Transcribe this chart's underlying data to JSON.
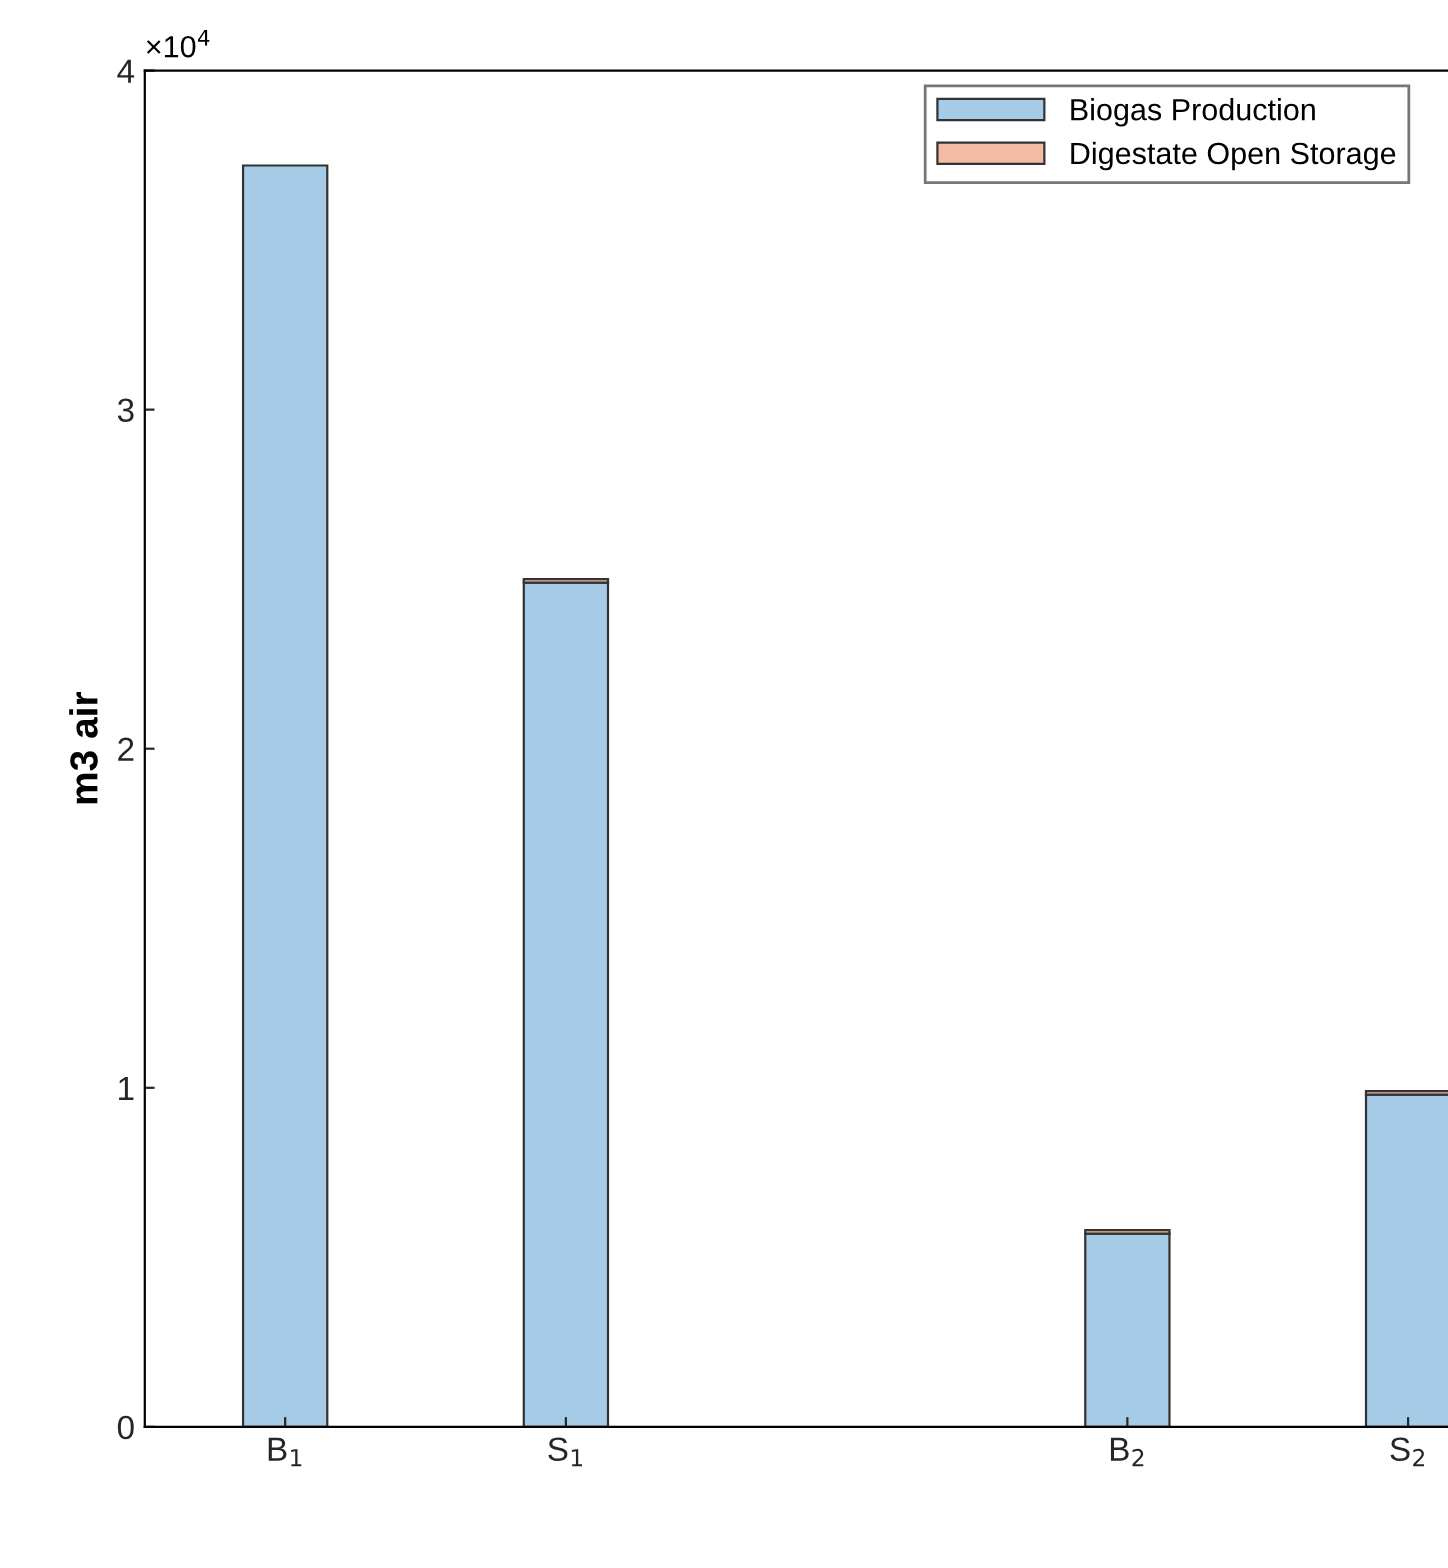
{
  "chart_data": {
    "type": "bar",
    "stacked": true,
    "ylabel": "m3 air",
    "categories": [
      "B$_{1}$",
      "S$_{1}$",
      null,
      "B$_{2}$",
      "S$_{2}$"
    ],
    "series": [
      {
        "name": "Biogas Production",
        "color": "#a6cbe6",
        "values": [
          3.72,
          2.49,
          null,
          0.57,
          0.98
        ]
      },
      {
        "name": "Digestate Open Storage",
        "color": "#f4bba4",
        "values": [
          null,
          0.01,
          null,
          0.01,
          0.01
        ]
      }
    ],
    "ylim": [
      0,
      4
    ],
    "yticks": [
      0,
      1,
      2,
      3,
      4
    ],
    "annotations": [
      "×10$^{4}$"
    ],
    "legend": "top right",
    "grid": false
  }
}
